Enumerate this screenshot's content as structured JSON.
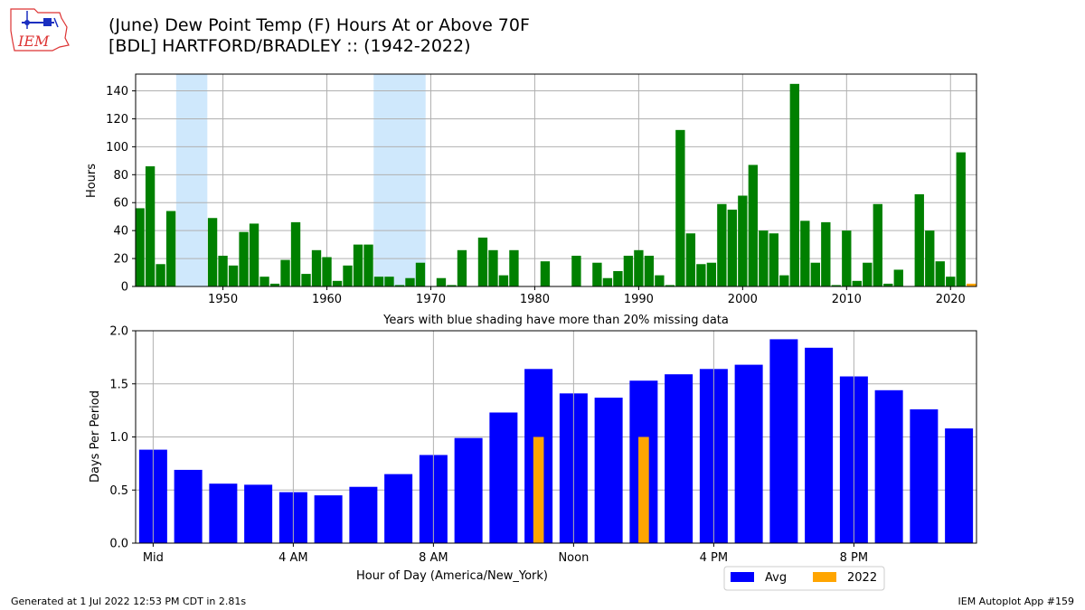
{
  "page": {
    "title_line1": "(June) Dew Point Temp (F) Hours At or Above 70F",
    "title_line2": "[BDL] HARTFORD/BRADLEY :: (1942-2022)",
    "footer_left": "Generated at 1 Jul 2022 12:53 PM CDT in 2.81s",
    "footer_right": "IEM Autoplot App #159",
    "logo_text": "IEM"
  },
  "colors": {
    "top_bars": "#008000",
    "current_year": "#ffa500",
    "missing_shading": "#cfe8fc",
    "avg_bars": "#0000ff",
    "grid": "#b0b0b0"
  },
  "chart_data": [
    {
      "type": "bar",
      "title": "(June) Dew Point Temp (F) Hours At or Above 70F",
      "xlabel": "Years with blue shading have more than 20% missing data",
      "ylabel": "Hours",
      "xlim": [
        1941.6,
        2022.5
      ],
      "ylim": [
        0,
        152
      ],
      "xticks": [
        1950,
        1960,
        1970,
        1980,
        1990,
        2000,
        2010,
        2020
      ],
      "yticks": [
        0,
        20,
        40,
        60,
        80,
        100,
        120,
        140
      ],
      "grid": true,
      "missing_data_spans": [
        [
          1945.5,
          1948.5
        ],
        [
          1964.5,
          1969.5
        ]
      ],
      "highlight_year": 2022,
      "x": [
        1942,
        1943,
        1944,
        1945,
        1946,
        1947,
        1948,
        1949,
        1950,
        1951,
        1952,
        1953,
        1954,
        1955,
        1956,
        1957,
        1958,
        1959,
        1960,
        1961,
        1962,
        1963,
        1964,
        1965,
        1966,
        1967,
        1968,
        1969,
        1970,
        1971,
        1972,
        1973,
        1974,
        1975,
        1976,
        1977,
        1978,
        1979,
        1980,
        1981,
        1982,
        1983,
        1984,
        1985,
        1986,
        1987,
        1988,
        1989,
        1990,
        1991,
        1992,
        1993,
        1994,
        1995,
        1996,
        1997,
        1998,
        1999,
        2000,
        2001,
        2002,
        2003,
        2004,
        2005,
        2006,
        2007,
        2008,
        2009,
        2010,
        2011,
        2012,
        2013,
        2014,
        2015,
        2016,
        2017,
        2018,
        2019,
        2020,
        2021,
        2022
      ],
      "values": [
        56,
        86,
        16,
        54,
        0,
        0,
        0,
        49,
        22,
        15,
        39,
        45,
        7,
        2,
        19,
        46,
        9,
        26,
        21,
        4,
        15,
        30,
        30,
        7,
        7,
        1,
        6,
        17,
        0,
        6,
        1,
        26,
        0,
        35,
        26,
        8,
        26,
        0,
        0,
        18,
        0,
        0,
        22,
        0,
        17,
        6,
        11,
        22,
        26,
        22,
        8,
        1,
        112,
        38,
        16,
        17,
        59,
        55,
        65,
        87,
        40,
        38,
        8,
        145,
        47,
        17,
        46,
        1,
        40,
        4,
        17,
        59,
        2,
        12,
        0,
        66,
        40,
        18,
        7,
        96,
        2
      ]
    },
    {
      "type": "bar",
      "xlabel": "Hour of Day (America/New_York)",
      "ylabel": "Days Per Period",
      "ylim": [
        0,
        2.0
      ],
      "yticks": [
        "0.0",
        "0.5",
        "1.0",
        "1.5",
        "2.0"
      ],
      "xtick_labels": [
        {
          "hour": 0,
          "label": "Mid"
        },
        {
          "hour": 4,
          "label": "4 AM"
        },
        {
          "hour": 8,
          "label": "8 AM"
        },
        {
          "hour": 12,
          "label": "Noon"
        },
        {
          "hour": 16,
          "label": "4 PM"
        },
        {
          "hour": 20,
          "label": "8 PM"
        }
      ],
      "grid": true,
      "legend": {
        "placement": "below-right",
        "entries": [
          "Avg",
          "2022"
        ]
      },
      "series": [
        {
          "name": "Avg",
          "hours": [
            0,
            1,
            2,
            3,
            4,
            5,
            6,
            7,
            8,
            9,
            10,
            11,
            12,
            13,
            14,
            15,
            16,
            17,
            18,
            19,
            20,
            21,
            22,
            23
          ],
          "values": [
            0.88,
            0.69,
            0.56,
            0.55,
            0.48,
            0.45,
            0.53,
            0.65,
            0.83,
            0.99,
            1.23,
            1.64,
            1.41,
            1.37,
            1.53,
            1.59,
            1.64,
            1.68,
            1.92,
            1.84,
            1.57,
            1.44,
            1.26,
            1.08
          ]
        },
        {
          "name": "2022",
          "hours": [
            11,
            14
          ],
          "values": [
            1.0,
            1.0
          ]
        }
      ]
    }
  ]
}
